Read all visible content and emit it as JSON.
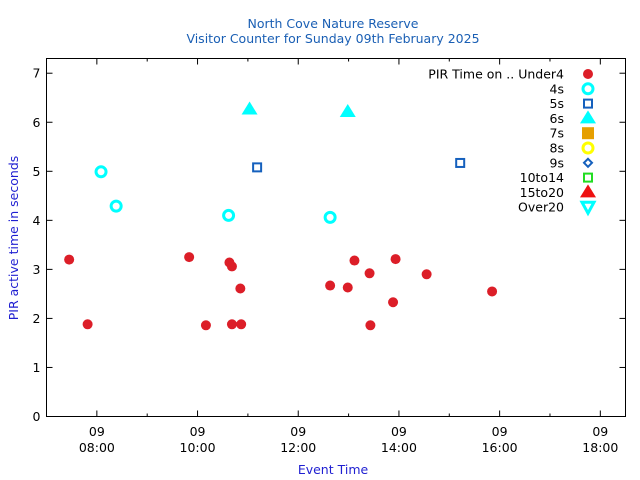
{
  "chart_data": {
    "type": "scatter",
    "title": "North Cove Nature Reserve",
    "subtitle": "Visitor Counter for Sunday 09th February 2025",
    "xlabel": "Event Time",
    "ylabel": "PIR active time in seconds",
    "xlim": [
      "07:00",
      "18:30"
    ],
    "ylim": [
      0,
      7.3
    ],
    "x_ticks": [
      {
        "value": "08:00",
        "line1": "09",
        "line2": "08:00"
      },
      {
        "value": "10:00",
        "line1": "09",
        "line2": "10:00"
      },
      {
        "value": "12:00",
        "line1": "09",
        "line2": "12:00"
      },
      {
        "value": "14:00",
        "line1": "09",
        "line2": "14:00"
      },
      {
        "value": "16:00",
        "line1": "09",
        "line2": "16:00"
      },
      {
        "value": "18:00",
        "line1": "09",
        "line2": "18:00"
      }
    ],
    "y_ticks": [
      "0",
      "1",
      "2",
      "3",
      "4",
      "5",
      "6",
      "7"
    ],
    "grid": false,
    "legend_title": "PIR Time on ..",
    "legend_position": "top-right",
    "series": [
      {
        "name": "Under4",
        "marker": "circle-filled",
        "color": "#dc1e28",
        "points": [
          {
            "x": "07:27",
            "y": 3.2
          },
          {
            "x": "07:49",
            "y": 1.88
          },
          {
            "x": "09:50",
            "y": 3.25
          },
          {
            "x": "10:10",
            "y": 1.86
          },
          {
            "x": "10:38",
            "y": 3.14
          },
          {
            "x": "10:41",
            "y": 3.06
          },
          {
            "x": "10:41",
            "y": 1.88
          },
          {
            "x": "10:51",
            "y": 2.61
          },
          {
            "x": "10:52",
            "y": 1.88
          },
          {
            "x": "12:38",
            "y": 2.67
          },
          {
            "x": "12:59",
            "y": 2.63
          },
          {
            "x": "13:07",
            "y": 3.18
          },
          {
            "x": "13:25",
            "y": 2.92
          },
          {
            "x": "13:26",
            "y": 1.86
          },
          {
            "x": "13:53",
            "y": 2.33
          },
          {
            "x": "13:56",
            "y": 3.21
          },
          {
            "x": "14:33",
            "y": 2.9
          },
          {
            "x": "15:51",
            "y": 2.55
          }
        ]
      },
      {
        "name": "4s",
        "marker": "circle-open",
        "color": "#00ffff",
        "points": [
          {
            "x": "08:05",
            "y": 4.99
          },
          {
            "x": "08:23",
            "y": 4.29
          },
          {
            "x": "10:37",
            "y": 4.1
          },
          {
            "x": "12:38",
            "y": 4.06
          }
        ]
      },
      {
        "name": "5s",
        "marker": "square-open",
        "color": "#1560bd",
        "points": [
          {
            "x": "11:11",
            "y": 5.08
          },
          {
            "x": "15:13",
            "y": 5.17
          }
        ]
      },
      {
        "name": "6s",
        "marker": "triangle-up-filled",
        "color": "#00ffff",
        "points": [
          {
            "x": "11:02",
            "y": 6.26
          },
          {
            "x": "12:59",
            "y": 6.21
          }
        ]
      },
      {
        "name": "7s",
        "marker": "square-filled",
        "color": "#e69f00",
        "points": []
      },
      {
        "name": "8s",
        "marker": "circle-open",
        "color": "#ffff00",
        "points": []
      },
      {
        "name": "9s",
        "marker": "diamond-open",
        "color": "#1560bd",
        "points": []
      },
      {
        "name": "10to14",
        "marker": "square-open",
        "color": "#22dd22",
        "points": []
      },
      {
        "name": "15to20",
        "marker": "triangle-up-filled",
        "color": "#ee1111",
        "points": []
      },
      {
        "name": "Over20",
        "marker": "triangle-down-open",
        "color": "#00ffff",
        "points": []
      }
    ]
  }
}
